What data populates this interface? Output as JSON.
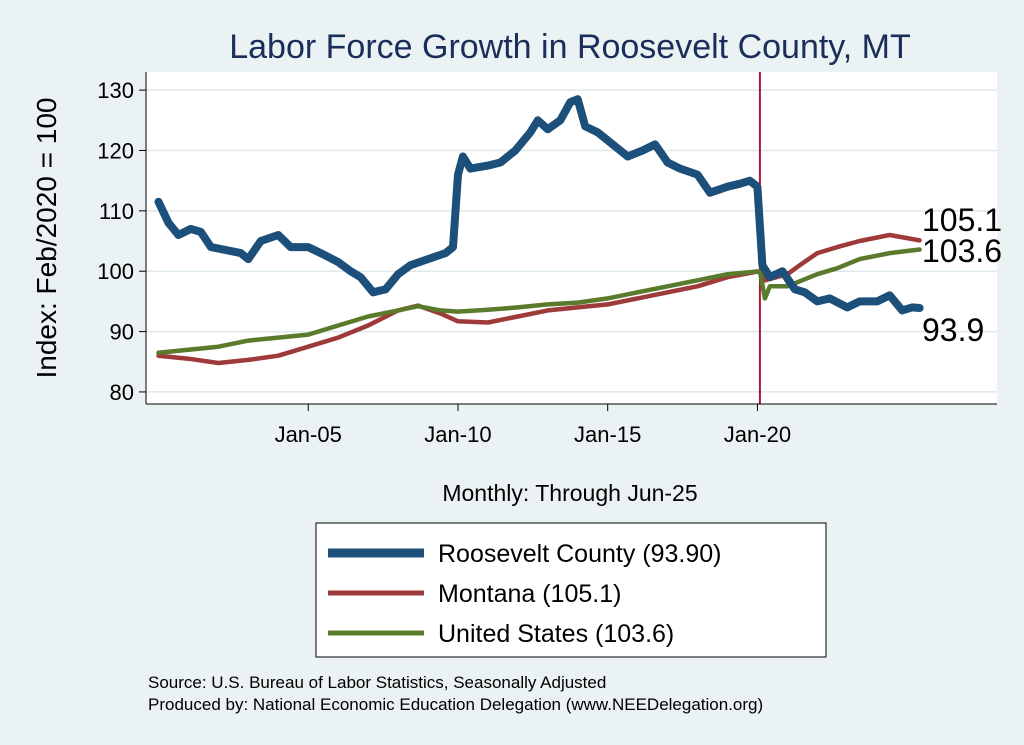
{
  "chart_data": {
    "type": "line",
    "title": "Labor Force Growth in Roosevelt  County, MT",
    "ylabel": "Index: Feb/2020 = 100",
    "xlabel": "Monthly: Through Jun-25",
    "ylim": [
      78,
      133
    ],
    "xlim": [
      "1999-08",
      "2028-01"
    ],
    "yticks": [
      80,
      90,
      100,
      110,
      120,
      130
    ],
    "xticks": [
      {
        "label": "Jan-05",
        "date": "2005-01"
      },
      {
        "label": "Jan-10",
        "date": "2010-01"
      },
      {
        "label": "Jan-15",
        "date": "2015-01"
      },
      {
        "label": "Jan-20",
        "date": "2020-01"
      }
    ],
    "grid": "horizontal",
    "vline": {
      "date": "2020-02",
      "color": "#b0173a"
    },
    "legend_position": "bottom",
    "series": [
      {
        "name": "Roosevelt  County (93.90)",
        "color": "#1c4f7a",
        "end_label": "93.9",
        "points": [
          [
            "2000-01",
            111.5
          ],
          [
            "2000-05",
            108
          ],
          [
            "2000-09",
            106
          ],
          [
            "2001-02",
            107
          ],
          [
            "2001-06",
            106.5
          ],
          [
            "2001-10",
            104
          ],
          [
            "2002-04",
            103.5
          ],
          [
            "2002-10",
            103
          ],
          [
            "2003-01",
            102
          ],
          [
            "2003-06",
            105
          ],
          [
            "2004-01",
            106
          ],
          [
            "2004-06",
            104
          ],
          [
            "2005-01",
            104
          ],
          [
            "2005-06",
            103
          ],
          [
            "2006-01",
            101.5
          ],
          [
            "2006-06",
            100
          ],
          [
            "2006-10",
            99
          ],
          [
            "2007-03",
            96.5
          ],
          [
            "2007-08",
            97
          ],
          [
            "2008-01",
            99.5
          ],
          [
            "2008-06",
            101
          ],
          [
            "2009-01",
            102
          ],
          [
            "2009-08",
            103
          ],
          [
            "2009-11",
            104
          ],
          [
            "2010-01",
            116
          ],
          [
            "2010-03",
            119
          ],
          [
            "2010-06",
            117
          ],
          [
            "2011-01",
            117.5
          ],
          [
            "2011-06",
            118
          ],
          [
            "2011-12",
            120
          ],
          [
            "2012-06",
            123
          ],
          [
            "2012-09",
            125
          ],
          [
            "2013-01",
            123.5
          ],
          [
            "2013-06",
            125
          ],
          [
            "2013-10",
            128
          ],
          [
            "2014-01",
            128.5
          ],
          [
            "2014-04",
            124
          ],
          [
            "2014-09",
            123
          ],
          [
            "2015-03",
            121
          ],
          [
            "2015-09",
            119
          ],
          [
            "2016-03",
            120
          ],
          [
            "2016-08",
            121
          ],
          [
            "2017-01",
            118
          ],
          [
            "2017-06",
            117
          ],
          [
            "2018-01",
            116
          ],
          [
            "2018-06",
            113
          ],
          [
            "2019-01",
            114
          ],
          [
            "2019-06",
            114.5
          ],
          [
            "2019-10",
            115
          ],
          [
            "2020-01",
            114
          ],
          [
            "2020-03",
            101
          ],
          [
            "2020-06",
            99
          ],
          [
            "2020-11",
            100
          ],
          [
            "2021-04",
            97
          ],
          [
            "2021-08",
            96.5
          ],
          [
            "2022-01",
            95
          ],
          [
            "2022-06",
            95.5
          ],
          [
            "2023-01",
            94
          ],
          [
            "2023-06",
            95
          ],
          [
            "2024-01",
            95
          ],
          [
            "2024-06",
            96
          ],
          [
            "2024-11",
            93.5
          ],
          [
            "2025-03",
            94
          ],
          [
            "2025-06",
            93.9
          ]
        ]
      },
      {
        "name": "Montana (105.1)",
        "color": "#9e3a3a",
        "end_label": "105.1",
        "points": [
          [
            "2000-01",
            86
          ],
          [
            "2001-01",
            85.5
          ],
          [
            "2002-01",
            84.8
          ],
          [
            "2003-01",
            85.3
          ],
          [
            "2004-01",
            86
          ],
          [
            "2005-01",
            87.5
          ],
          [
            "2006-01",
            89
          ],
          [
            "2007-01",
            91
          ],
          [
            "2008-01",
            93.5
          ],
          [
            "2008-09",
            94.3
          ],
          [
            "2009-06",
            93
          ],
          [
            "2010-01",
            91.7
          ],
          [
            "2011-01",
            91.5
          ],
          [
            "2012-01",
            92.5
          ],
          [
            "2013-01",
            93.5
          ],
          [
            "2014-01",
            94
          ],
          [
            "2015-01",
            94.5
          ],
          [
            "2016-01",
            95.5
          ],
          [
            "2017-01",
            96.5
          ],
          [
            "2018-01",
            97.5
          ],
          [
            "2019-01",
            99
          ],
          [
            "2020-02",
            100
          ],
          [
            "2020-04",
            98.5
          ],
          [
            "2021-01",
            99.5
          ],
          [
            "2021-06",
            101
          ],
          [
            "2022-01",
            103
          ],
          [
            "2022-09",
            104
          ],
          [
            "2023-06",
            105
          ],
          [
            "2024-06",
            106
          ],
          [
            "2025-06",
            105.1
          ]
        ]
      },
      {
        "name": "United States (103.6)",
        "color": "#5a7a2c",
        "end_label": "103.6",
        "points": [
          [
            "2000-01",
            86.5
          ],
          [
            "2001-01",
            87
          ],
          [
            "2002-01",
            87.5
          ],
          [
            "2003-01",
            88.5
          ],
          [
            "2004-01",
            89
          ],
          [
            "2005-01",
            89.5
          ],
          [
            "2006-01",
            91
          ],
          [
            "2007-01",
            92.5
          ],
          [
            "2008-01",
            93.5
          ],
          [
            "2008-09",
            94.2
          ],
          [
            "2009-06",
            93.5
          ],
          [
            "2010-01",
            93.3
          ],
          [
            "2011-01",
            93.6
          ],
          [
            "2012-01",
            94
          ],
          [
            "2013-01",
            94.5
          ],
          [
            "2014-01",
            94.8
          ],
          [
            "2015-01",
            95.5
          ],
          [
            "2016-01",
            96.5
          ],
          [
            "2017-01",
            97.5
          ],
          [
            "2018-01",
            98.5
          ],
          [
            "2019-01",
            99.5
          ],
          [
            "2020-02",
            100
          ],
          [
            "2020-04",
            95.5
          ],
          [
            "2020-06",
            97.5
          ],
          [
            "2021-01",
            97.5
          ],
          [
            "2022-01",
            99.5
          ],
          [
            "2022-09",
            100.5
          ],
          [
            "2023-06",
            102
          ],
          [
            "2024-06",
            103
          ],
          [
            "2025-06",
            103.6
          ]
        ]
      }
    ]
  },
  "source_line": "Source: U.S. Bureau of Labor Statistics, Seasonally Adjusted",
  "produced_line": "Produced by: National Economic Education Delegation (www.NEEDelegation.org)"
}
